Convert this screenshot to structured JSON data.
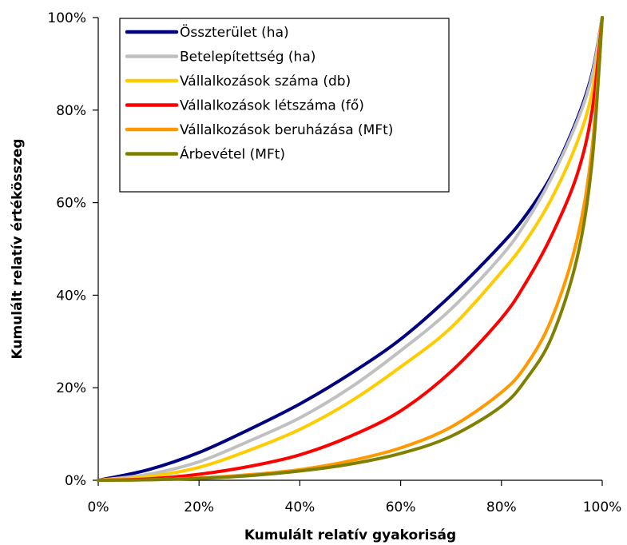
{
  "chart_data": {
    "type": "line",
    "xlabel": "Kumulált relatív gyakoriság",
    "ylabel": "Kumulált relatív értékösszeg",
    "xlim": [
      0,
      100
    ],
    "ylim": [
      0,
      100
    ],
    "x_ticks": [
      "0%",
      "20%",
      "40%",
      "60%",
      "80%",
      "100%"
    ],
    "y_ticks": [
      "0%",
      "20%",
      "40%",
      "60%",
      "80%",
      "100%"
    ],
    "grid": false,
    "legend_position": "top-left",
    "x": [
      0,
      10,
      20,
      30,
      40,
      50,
      60,
      70,
      80,
      85,
      90,
      95,
      98,
      100
    ],
    "series": [
      {
        "name": "Összterület (ha)",
        "color": "#000080",
        "values": [
          0,
          2.3,
          6,
          11,
          16.5,
          23,
          30.5,
          40,
          51,
          57.5,
          66,
          78,
          88,
          100
        ]
      },
      {
        "name": "Betelepítettség (ha)",
        "color": "#c0c0c0",
        "values": [
          0,
          1.3,
          4,
          8.5,
          13.5,
          20,
          28,
          37,
          48.5,
          56,
          65.5,
          77.5,
          87.5,
          100
        ]
      },
      {
        "name": "Vállalkozások száma (db)",
        "color": "#ffcc00",
        "values": [
          0,
          0.8,
          2.8,
          6.5,
          11,
          17,
          24.5,
          33,
          45,
          52,
          61,
          73,
          84,
          100
        ]
      },
      {
        "name": "Vállalkozások létszáma (fő)",
        "color": "#ff0000",
        "values": [
          0,
          0.3,
          1.3,
          3,
          5.5,
          9.5,
          15,
          23.5,
          35,
          43,
          53,
          66,
          80,
          100
        ]
      },
      {
        "name": "Vállalkozások beruházása (MFt)",
        "color": "#ff9900",
        "values": [
          0,
          0.1,
          0.5,
          1.2,
          2.3,
          4.2,
          7,
          11.5,
          19,
          25,
          35,
          52,
          72,
          100
        ]
      },
      {
        "name": "Árbevétel (MFt)",
        "color": "#808000",
        "values": [
          0,
          0.1,
          0.4,
          1,
          2,
          3.5,
          5.8,
          9.5,
          16,
          22,
          31,
          48,
          69,
          100
        ]
      }
    ]
  }
}
